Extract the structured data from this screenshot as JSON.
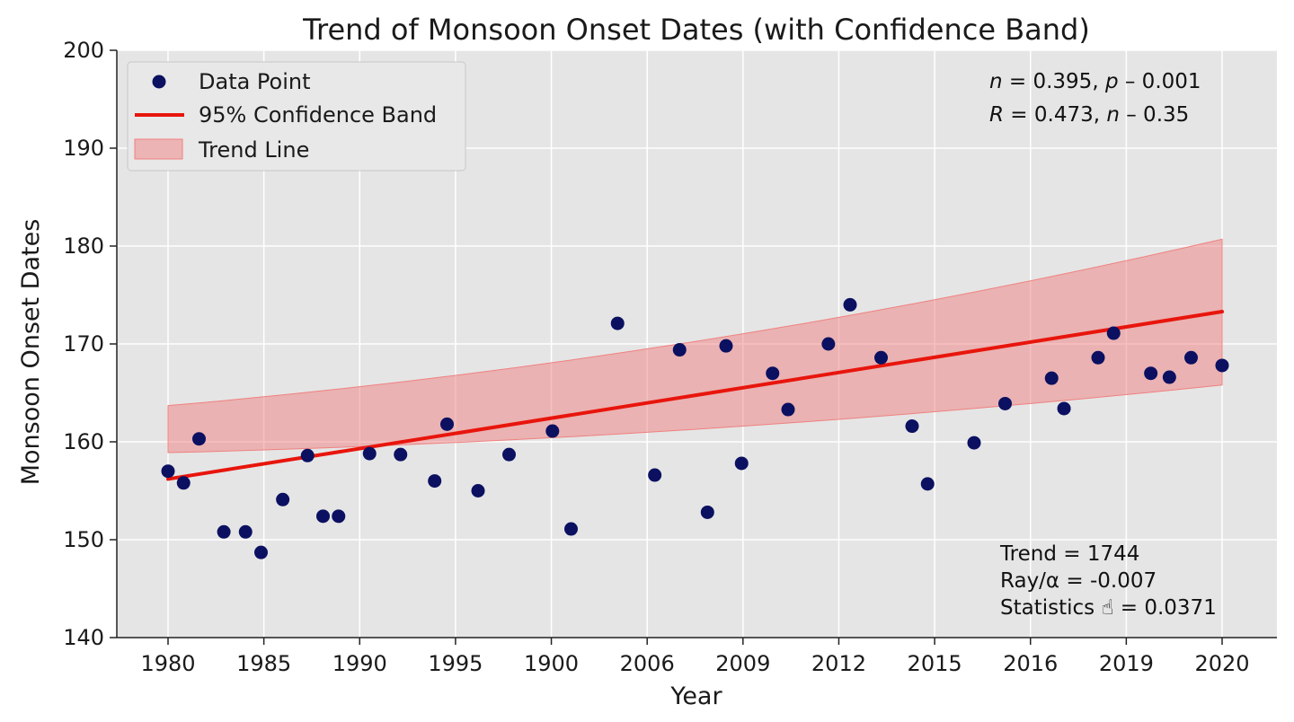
{
  "chart_data": {
    "type": "scatter",
    "title": "Trend of Monsoon Onset Dates (with Confidence Band)",
    "xlabel": "Year",
    "ylabel": "Monsoon Onset Dates",
    "ylim": [
      140,
      200
    ],
    "yticks": [
      140,
      150,
      160,
      170,
      180,
      190,
      200
    ],
    "xtick_labels": [
      "1980",
      "1985",
      "1990",
      "1995",
      "1900",
      "2006",
      "2009",
      "2012",
      "2015",
      "2016",
      "2019",
      "2020"
    ],
    "grid": true,
    "legend_position": "top-left",
    "legend": {
      "points": "Data Point",
      "line": "95% Confidence Band",
      "band": "Trend Line"
    },
    "series": [
      {
        "kind": "points",
        "x_index": [
          0,
          0.5,
          1,
          1.8,
          2.5,
          3,
          3.7,
          4.5,
          5,
          5.5,
          6.5,
          7.5,
          8.6,
          9,
          10,
          11,
          12.4,
          13,
          14.5,
          15.7,
          16.5,
          17.4,
          18,
          18.5,
          19.5,
          20,
          21.3,
          22,
          23,
          24,
          24.5,
          26,
          27,
          28.5,
          28.9,
          30,
          30.5,
          31.7,
          32.3,
          33,
          34
        ],
        "y": [
          157.0,
          155.8,
          160.3,
          150.8,
          150.8,
          148.7,
          154.1,
          158.6,
          152.4,
          152.4,
          158.8,
          158.7,
          156.0,
          161.8,
          155.0,
          158.7,
          161.1,
          151.1,
          172.1,
          156.6,
          169.4,
          152.8,
          169.8,
          157.8,
          167.0,
          163.3,
          170.0,
          174.0,
          168.6,
          161.6,
          155.7,
          159.9,
          163.9,
          166.5,
          163.4,
          168.6,
          171.1,
          167.0,
          166.6,
          168.6,
          167.8
        ],
        "color": "#0b1061"
      },
      {
        "kind": "line",
        "x_index": [
          0,
          34
        ],
        "y": [
          156.2,
          173.3
        ],
        "color": "#e8150c"
      },
      {
        "kind": "band",
        "x_index": [
          0,
          34
        ],
        "lower": [
          158.9,
          165.8
        ],
        "upper": [
          163.7,
          180.7
        ],
        "mid": [
          160.2,
          168.3
        ],
        "color": "#f08080"
      }
    ],
    "annotations": {
      "stats_top_line1_var1": "n",
      "stats_top_line1_rest1": " = 0.395, ",
      "stats_top_line1_var2": "p",
      "stats_top_line1_rest2": " – 0.001",
      "stats_top_line2_var1": "R",
      "stats_top_line2_rest1": " = 0.473, ",
      "stats_top_line2_var2": "n",
      "stats_top_line2_rest2": " – 0.35",
      "trend_line": "Trend = 1744",
      "ray_line": "Ray/α = -0.007",
      "statistics_line": "Statistics ☝ = 0.0371"
    }
  }
}
